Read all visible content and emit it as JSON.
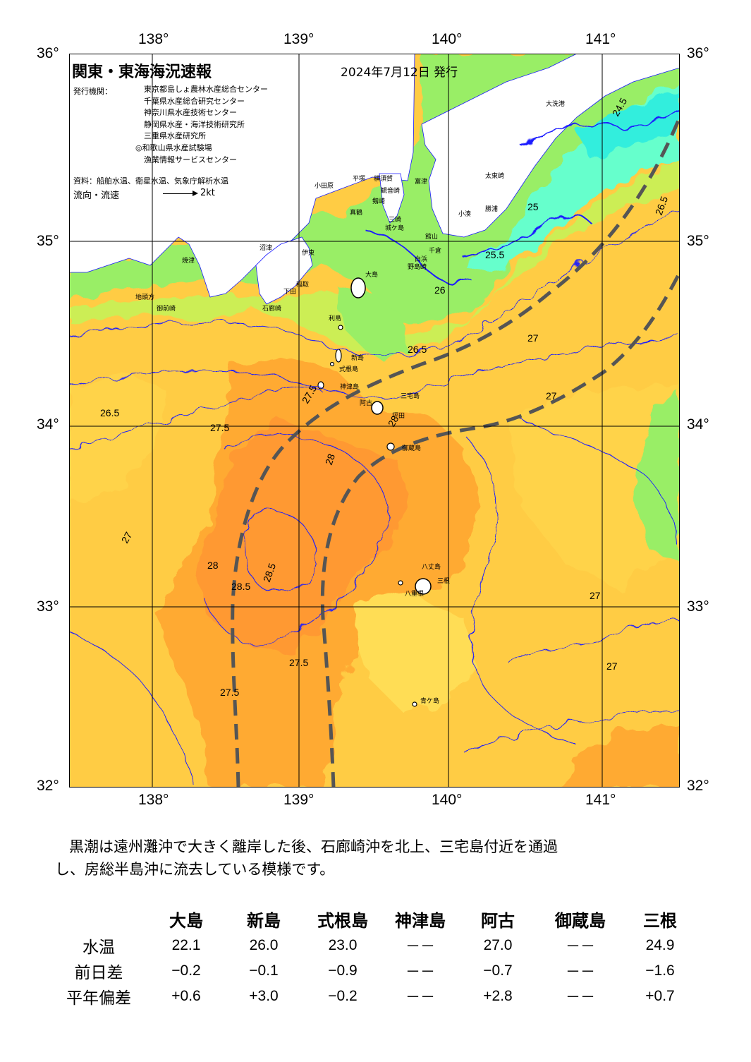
{
  "header": {
    "title": "関東・東海海況速報",
    "date": "2024年7月12日 発行",
    "agency_label": "発行機関：",
    "agencies": [
      "東京都島しょ農林水産総合センター",
      "千葉県水産総合研究センター",
      "神奈川県水産技術センター",
      "静岡県水産・海洋技術研究所",
      "三重県水産研究所",
      "◎和歌山県水産試験場",
      "漁業情報サービスセンター"
    ],
    "source": "資料：船舶水温、衛星水温、気象庁解析水温",
    "flow_label": "流向・流速",
    "flow_scale": "2kt"
  },
  "axes": {
    "lon_top": [
      "138°",
      "139°",
      "140°",
      "141°"
    ],
    "lon_bottom": [
      "138°",
      "139°",
      "140°",
      "141°"
    ],
    "lat_left": [
      "36°",
      "35°",
      "34°",
      "33°",
      "32°"
    ],
    "lat_right": [
      "36°",
      "35°",
      "34°",
      "33°",
      "32°"
    ]
  },
  "places": [
    "大洗港",
    "太東崎",
    "勝浦",
    "小湊",
    "館山",
    "千倉",
    "白浜",
    "野島崎",
    "富津",
    "横須賀",
    "城ケ島",
    "三崎",
    "観音崎",
    "剱崎",
    "平塚",
    "小田原",
    "真鶴",
    "伊東",
    "稲取",
    "下田",
    "石廊崎",
    "御前崎",
    "焼津",
    "沼津",
    "地頭方",
    "大島",
    "利島",
    "新島",
    "式根島",
    "神津島",
    "三宅島",
    "阿古",
    "坪田",
    "御蔵島",
    "八丈島",
    "八重根",
    "三根",
    "青ケ島"
  ],
  "contour_labels": [
    "24.5",
    "25",
    "25.5",
    "26",
    "26.5",
    "27",
    "27.5",
    "28",
    "28.5"
  ],
  "colors": {
    "t_lt_25": "#1a8aff",
    "t_25": "#66ffcc",
    "t_25_5": "#99ff66",
    "t_26_5": "#ffcc33",
    "t_27": "#ffcc33",
    "t_27_5": "#ffaa33",
    "t_28": "#ff9933",
    "kuroshio_axis": "#555555",
    "contour": "#1a1aff",
    "land": "#ffffff"
  },
  "comment": {
    "line1": "黒潮は遠州灘沖で大きく離岸した後、石廊崎沖を北上、三宅島付近を通過",
    "line2": "し、房総半島沖に流去している模様です。"
  },
  "table": {
    "columns": [
      "大島",
      "新島",
      "式根島",
      "神津島",
      "阿古",
      "御蔵島",
      "三根"
    ],
    "rows": [
      {
        "label": "水温",
        "values": [
          "22.1",
          "26.0",
          "23.0",
          "－－",
          "27.0",
          "－－",
          "24.9"
        ]
      },
      {
        "label": "前日差",
        "values": [
          "−0.2",
          "−0.1",
          "−0.9",
          "－－",
          "−0.7",
          "－－",
          "−1.6"
        ]
      },
      {
        "label": "平年偏差",
        "values": [
          "+0.6",
          "+3.0",
          "−0.2",
          "－－",
          "+2.8",
          "－－",
          "+0.7"
        ]
      }
    ]
  }
}
